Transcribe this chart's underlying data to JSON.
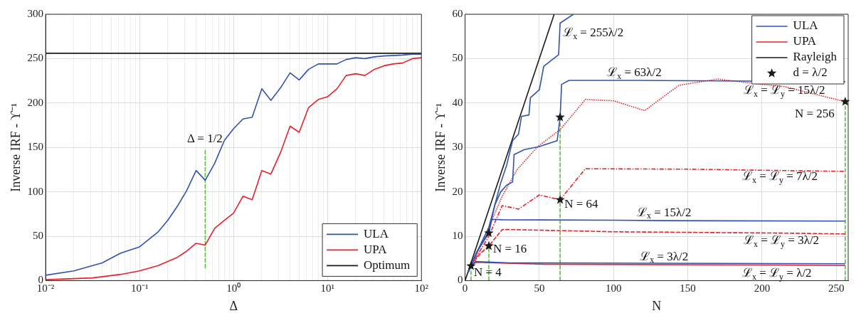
{
  "chart_data": [
    {
      "type": "line",
      "xlabel": "Δ",
      "ylabel": "Inverse IRF - ϒ⁻¹",
      "log": "x",
      "xlim": [
        0.01,
        100
      ],
      "xticks": [
        {
          "value": 0.01,
          "label": "10⁻²"
        },
        {
          "value": 0.02,
          "label": null
        },
        {
          "value": 0.03,
          "label": null
        },
        {
          "value": 0.04,
          "label": null
        },
        {
          "value": 0.05,
          "label": null
        },
        {
          "value": 0.06,
          "label": null
        },
        {
          "value": 0.07,
          "label": null
        },
        {
          "value": 0.08,
          "label": null
        },
        {
          "value": 0.09,
          "label": null
        },
        {
          "value": 0.1,
          "label": "10⁻¹"
        },
        {
          "value": 0.2,
          "label": null
        },
        {
          "value": 0.3,
          "label": null
        },
        {
          "value": 0.4,
          "label": null
        },
        {
          "value": 0.5,
          "label": null
        },
        {
          "value": 0.6,
          "label": null
        },
        {
          "value": 0.7,
          "label": null
        },
        {
          "value": 0.8,
          "label": null
        },
        {
          "value": 0.9,
          "label": null
        },
        {
          "value": 1,
          "label": "10⁰"
        },
        {
          "value": 2,
          "label": null
        },
        {
          "value": 3,
          "label": null
        },
        {
          "value": 4,
          "label": null
        },
        {
          "value": 5,
          "label": null
        },
        {
          "value": 6,
          "label": null
        },
        {
          "value": 7,
          "label": null
        },
        {
          "value": 8,
          "label": null
        },
        {
          "value": 9,
          "label": null
        },
        {
          "value": 10,
          "label": "10¹"
        },
        {
          "value": 20,
          "label": null
        },
        {
          "value": 30,
          "label": null
        },
        {
          "value": 40,
          "label": null
        },
        {
          "value": 50,
          "label": null
        },
        {
          "value": 60,
          "label": null
        },
        {
          "value": 70,
          "label": null
        },
        {
          "value": 80,
          "label": null
        },
        {
          "value": 90,
          "label": null
        },
        {
          "value": 100,
          "label": "10²"
        }
      ],
      "ylim": [
        0,
        300
      ],
      "yticks": [
        0,
        50,
        100,
        150,
        200,
        250,
        300
      ],
      "grid": true,
      "legend": "bottom right",
      "marker": "none",
      "annotations": [
        {
          "text": "Δ = 1/2",
          "x": 0.5,
          "y": 148
        }
      ],
      "series": [
        {
          "name": "ULA",
          "color": "#3352b0",
          "x": [
            0.01,
            0.02,
            0.04,
            0.063,
            0.1,
            0.158,
            0.2,
            0.25,
            0.316,
            0.4,
            0.5,
            0.63,
            0.8,
            1,
            1.26,
            1.58,
            2,
            2.5,
            3.16,
            4,
            5,
            6.3,
            8,
            10,
            12.6,
            15.8,
            20,
            25,
            31.6,
            40,
            63,
            80,
            100
          ],
          "values": [
            6,
            11,
            20,
            31,
            38,
            55,
            68,
            83,
            101,
            124,
            113,
            132,
            158,
            171,
            182,
            184,
            216,
            203,
            217,
            234,
            226,
            238,
            244,
            244,
            244,
            249,
            251,
            250,
            252,
            253,
            254,
            255,
            255
          ]
        },
        {
          "name": "UPA",
          "color": "#e8202a",
          "x": [
            0.01,
            0.0316,
            0.063,
            0.1,
            0.158,
            0.25,
            0.316,
            0.4,
            0.5,
            0.63,
            0.8,
            1,
            1.26,
            1.58,
            2,
            2.5,
            3.16,
            4,
            5,
            6.3,
            8,
            10,
            12.6,
            15.8,
            20,
            25,
            31.6,
            40,
            50,
            63,
            80,
            100
          ],
          "values": [
            1,
            3,
            7,
            11,
            17,
            26,
            33,
            42,
            40,
            59,
            68,
            76,
            95,
            91,
            124,
            120,
            144,
            174,
            167,
            195,
            204,
            207,
            216,
            231,
            233,
            231,
            238,
            242,
            244,
            245,
            250,
            251
          ]
        },
        {
          "name": "Optimum",
          "color": "#1a1a1a",
          "x": [
            0.01,
            100
          ],
          "values": [
            256,
            256
          ]
        },
        {
          "color": "#5cbf3a",
          "line_style": "dashed",
          "x": [
            0.5,
            0.5
          ],
          "values": [
            14,
            148
          ]
        }
      ]
    },
    {
      "type": "line",
      "xlabel": "N",
      "ylabel": "Inverse IRF - ϒ⁻¹",
      "xlim": [
        0,
        258
      ],
      "xticks": [
        0,
        50,
        100,
        150,
        200,
        250
      ],
      "ylim": [
        0,
        60
      ],
      "yticks": [
        0,
        10,
        20,
        30,
        40,
        50,
        60
      ],
      "grid": true,
      "legend": "top right",
      "marker": "none",
      "annotations": [
        {
          "text": "ℒ$_{x}$ = 255λ/2",
          "x": 64,
          "y": 58
        },
        {
          "text": "ℒ$_{x}$ = 63λ/2",
          "x": 114,
          "y": 45.1
        },
        {
          "text": "ℒ$_{x}$ = ℒ$_{y}$ = 15λ/2",
          "x": 215,
          "y": 43.7
        },
        {
          "text": "N = 256",
          "x": 256,
          "y": 40.3
        },
        {
          "text": "ℒ$_{x}$ = ℒ$_{y}$ = 7λ/2",
          "x": 212,
          "y": 24.8
        },
        {
          "text": "N = 64",
          "x": 64,
          "y": 18.2
        },
        {
          "text": "ℒ$_{x}$ = 15λ/2",
          "x": 134,
          "y": 13.5
        },
        {
          "text": "ℒ$_{x}$ = ℒ$_{y}$ = 3λ/2",
          "x": 213,
          "y": 10.7
        },
        {
          "text": "N = 16",
          "x": 16,
          "y": 7.8
        },
        {
          "text": "ℒ$_{x}$ = 3λ/2",
          "x": 134,
          "y": 3.9
        },
        {
          "text": "N = 4",
          "x": 4,
          "y": 3.3
        },
        {
          "text": "ℒ$_{x}$ = ℒ$_{y}$ = λ/2",
          "x": 210,
          "y": 3.5
        }
      ],
      "series": [
        {
          "name": "ULA",
          "color": "#3352b0",
          "x": [
            2,
            8,
            16,
            20,
            24,
            28,
            32,
            36,
            38,
            43,
            44,
            50,
            53,
            63,
            64,
            73
          ],
          "values": [
            1.8,
            6.5,
            12,
            17,
            22,
            26,
            31.5,
            33,
            37,
            37.3,
            41.2,
            43,
            48.3,
            50.9,
            58,
            60
          ]
        },
        {
          "color": "#3352b0",
          "x": [
            2,
            8,
            16,
            20,
            24,
            28,
            32,
            33,
            40,
            50,
            62,
            64,
            65,
            70,
            100,
            114,
            256
          ],
          "values": [
            1.8,
            6.5,
            11,
            17,
            20,
            21.5,
            22.2,
            28.4,
            29.5,
            30.2,
            31.5,
            36.8,
            44.2,
            45.1,
            45.1,
            45.1,
            44.8
          ]
        },
        {
          "color": "#3352b0",
          "x": [
            2,
            8,
            16,
            18,
            25,
            100,
            134,
            256
          ],
          "values": [
            1.8,
            6.5,
            10.7,
            13.8,
            13.7,
            13.6,
            13.5,
            13.4
          ]
        },
        {
          "color": "#3352b0",
          "x": [
            2,
            4,
            7,
            30,
            134,
            256
          ],
          "values": [
            2,
            3.3,
            4.3,
            4,
            3.9,
            3.8
          ]
        },
        {
          "name": "UPA",
          "color": "#e8202a",
          "x": [
            2,
            4,
            7,
            50,
            210,
            256
          ],
          "values": [
            2,
            3.3,
            4.1,
            3.7,
            3.5,
            3.4
          ]
        },
        {
          "color": "#e8202a",
          "line_style": "dashed",
          "x": [
            4,
            10,
            16,
            25,
            30,
            100,
            213,
            256
          ],
          "values": [
            3.3,
            6,
            7.8,
            11.5,
            11.5,
            11,
            10.7,
            10.5
          ]
        },
        {
          "color": "#e8202a",
          "line_style": "dashdot",
          "x": [
            4,
            16,
            25,
            36,
            50,
            64,
            81,
            150,
            212,
            256
          ],
          "values": [
            3.3,
            10,
            16.9,
            16.1,
            19.3,
            18.2,
            25.2,
            25.1,
            24.8,
            24.6
          ]
        },
        {
          "color": "#e8202a",
          "line_style": "dotted",
          "x": [
            4,
            8,
            16,
            25,
            35,
            49,
            64,
            81,
            100,
            121,
            144,
            170,
            200,
            215,
            256
          ],
          "values": [
            3.3,
            6,
            12,
            19,
            25,
            30.2,
            34,
            40.8,
            40.5,
            38.3,
            44,
            45.4,
            44.2,
            43.7,
            40.3
          ]
        },
        {
          "name": "Rayleigh",
          "color": "#1a1a1a",
          "x": [
            0,
            60
          ],
          "values": [
            0,
            60
          ]
        },
        {
          "name": "d = λ/2",
          "type": "scatter",
          "marker": "star",
          "color": "#1a1a1a",
          "x": [
            4,
            16,
            16,
            64,
            64,
            256
          ],
          "values": [
            3.3,
            10.7,
            7.8,
            36.8,
            18.2,
            40.3
          ]
        },
        {
          "color": "#5cbf3a",
          "line_style": "dashed",
          "x": [
            4,
            4
          ],
          "values": [
            0,
            3.3
          ]
        },
        {
          "color": "#5cbf3a",
          "line_style": "dashed",
          "x": [
            16,
            16
          ],
          "values": [
            0,
            7.8
          ]
        },
        {
          "color": "#5cbf3a",
          "line_style": "dashed",
          "x": [
            64,
            64
          ],
          "values": [
            0,
            36.8
          ]
        },
        {
          "color": "#5cbf3a",
          "line_style": "dashed",
          "x": [
            256,
            256
          ],
          "values": [
            0,
            40.3
          ]
        }
      ]
    }
  ]
}
